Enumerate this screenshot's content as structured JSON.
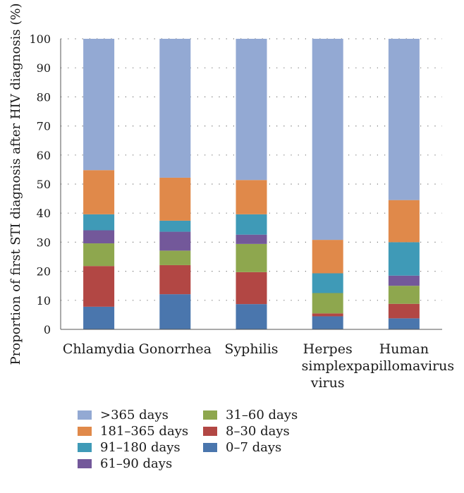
{
  "chart_data": {
    "type": "bar",
    "stacked": true,
    "title": "",
    "xlabel": "",
    "ylabel": "Proportion of first STI diagnosis after HIV diagnosis (%)",
    "ylim": [
      0,
      100
    ],
    "yticks": [
      0,
      10,
      20,
      30,
      40,
      50,
      60,
      70,
      80,
      90,
      100
    ],
    "grid": "horizontal dotted",
    "categories": [
      "Chlamydia",
      "Gonorrhea",
      "Syphilis",
      "Herpes simplex virus",
      "Human papillomavirus"
    ],
    "category_label_lines": [
      [
        "Chlamydia"
      ],
      [
        "Gonorrhea"
      ],
      [
        "Syphilis"
      ],
      [
        "Herpes",
        "simplex",
        "virus"
      ],
      [
        "Human",
        "papillomavirus"
      ]
    ],
    "series": [
      {
        "name": "0–7 days",
        "color": "#4a76ad",
        "values": [
          7.8,
          12.1,
          8.7,
          4.5,
          3.8
        ]
      },
      {
        "name": "8–30 days",
        "color": "#b24744",
        "values": [
          14.0,
          10.0,
          11.0,
          1.0,
          5.0
        ]
      },
      {
        "name": "31–60 days",
        "color": "#8ea74e",
        "values": [
          7.8,
          5.0,
          9.7,
          7.0,
          6.2
        ]
      },
      {
        "name": "61–90 days",
        "color": "#73589a",
        "values": [
          4.5,
          6.5,
          3.2,
          0.0,
          3.5
        ]
      },
      {
        "name": "91–180 days",
        "color": "#3f9ab7",
        "values": [
          5.5,
          3.8,
          7.0,
          6.8,
          11.5
        ]
      },
      {
        "name": "181–365 days",
        "color": "#e0894a",
        "values": [
          15.2,
          14.8,
          11.8,
          11.5,
          14.5
        ]
      },
      {
        "name": ">365 days",
        "color": "#93a9d3",
        "values": [
          45.2,
          47.8,
          48.6,
          69.2,
          55.5
        ]
      }
    ],
    "legend_position": "bottom",
    "legend_order": [
      ">365 days",
      "181–365 days",
      "91–180 days",
      "61–90 days",
      "31–60 days",
      "8–30 days",
      "0–7 days"
    ]
  }
}
